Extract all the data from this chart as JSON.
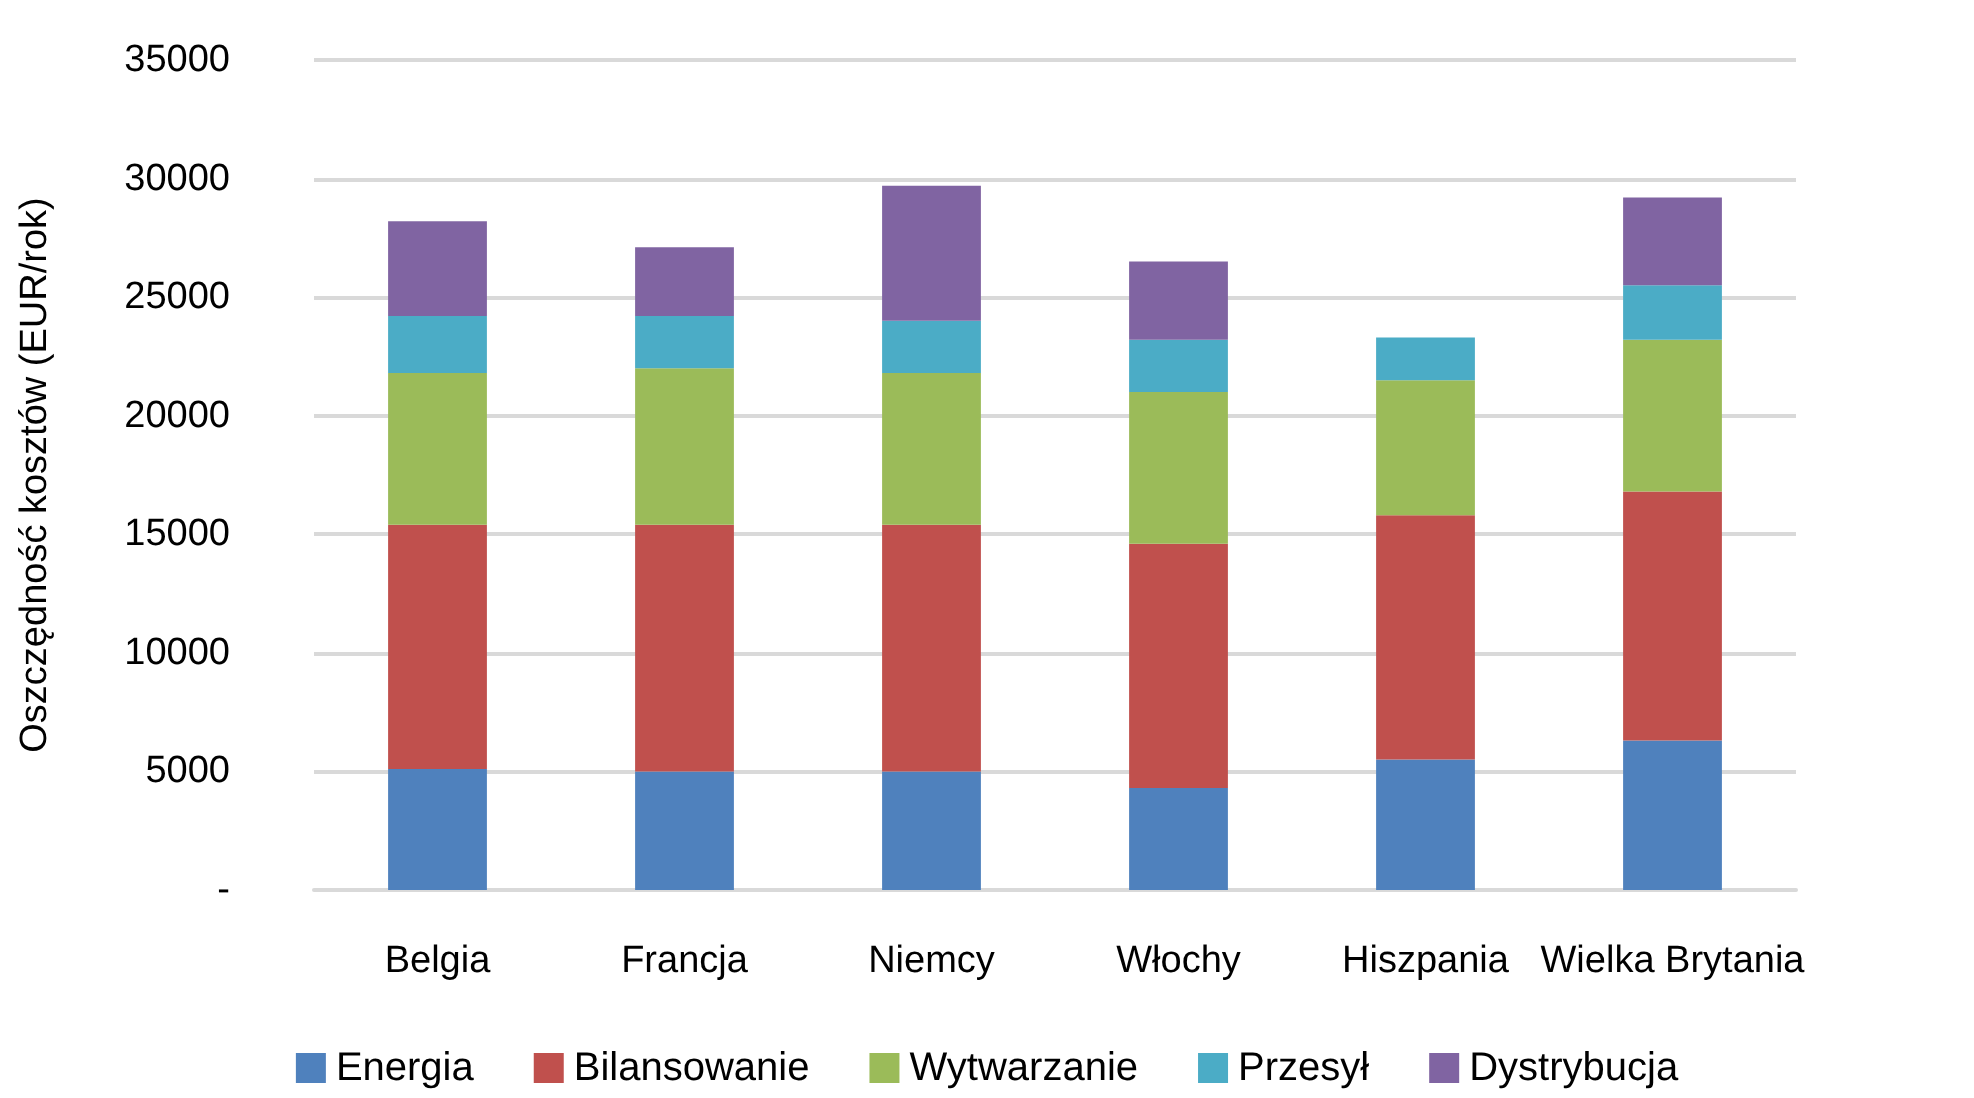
{
  "chart_data": {
    "type": "bar",
    "stacked": true,
    "ylabel": "Oszczędność kosztów (EUR/rok)",
    "categories": [
      "Belgia",
      "Francja",
      "Niemcy",
      "Włochy",
      "Hiszpania",
      "Wielka Brytania"
    ],
    "series": [
      {
        "name": "Energia",
        "color": "#4f81bd",
        "values": [
          5100,
          5000,
          5000,
          4300,
          5500,
          6300
        ]
      },
      {
        "name": "Bilansowanie",
        "color": "#c0504d",
        "values": [
          10300,
          10400,
          10400,
          10300,
          10300,
          10500
        ]
      },
      {
        "name": "Wytwarzanie",
        "color": "#9bbb59",
        "values": [
          6400,
          6600,
          6400,
          6400,
          5700,
          6400
        ]
      },
      {
        "name": "Przesył",
        "color": "#4bacc6",
        "values": [
          2400,
          2200,
          2200,
          2200,
          1800,
          2300
        ]
      },
      {
        "name": "Dystrybucja",
        "color": "#8064a2",
        "values": [
          4000,
          2900,
          5700,
          3300,
          null,
          3700
        ]
      }
    ],
    "ylim": [
      0,
      35000
    ],
    "yticks": [
      {
        "value": 0,
        "label": "-"
      },
      5000,
      10000,
      15000,
      20000,
      25000,
      30000,
      35000
    ],
    "grid": "y",
    "legend": "bottom"
  }
}
